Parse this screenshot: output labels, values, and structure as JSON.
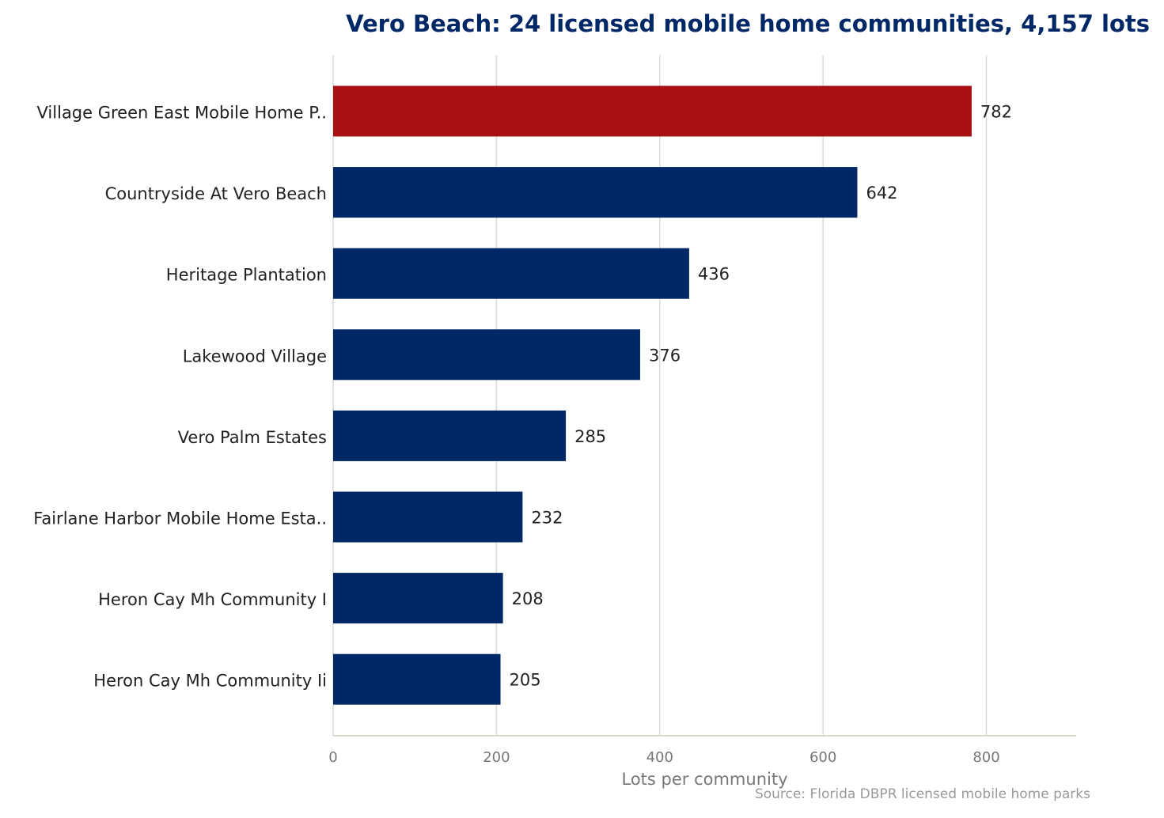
{
  "chart_data": {
    "type": "bar",
    "orientation": "horizontal",
    "title": "Vero Beach: 24 licensed mobile home communities, 4,157 lots",
    "xlabel": "Lots per community",
    "ylabel": "",
    "xlim": [
      0,
      910
    ],
    "xticks": [
      0,
      200,
      400,
      600,
      800
    ],
    "grid": "vertical",
    "categories": [
      "Village Green East Mobile Home P..",
      "Countryside At Vero Beach",
      "Heritage Plantation",
      "Lakewood Village",
      "Vero Palm Estates",
      "Fairlane Harbor Mobile Home Esta..",
      "Heron Cay Mh Community I",
      "Heron Cay Mh Community Ii"
    ],
    "values": [
      782,
      642,
      436,
      376,
      285,
      232,
      208,
      205
    ],
    "value_labels": [
      "782",
      "642",
      "436",
      "376",
      "285",
      "232",
      "208",
      "205"
    ],
    "highlight_index": 0,
    "source": "Source: Florida DBPR licensed mobile home parks"
  },
  "colors": {
    "title": "#002766",
    "bar": "#002766",
    "highlight": "#a81014",
    "grid": "#d9d9d9",
    "axis": "#d8d8cc"
  }
}
